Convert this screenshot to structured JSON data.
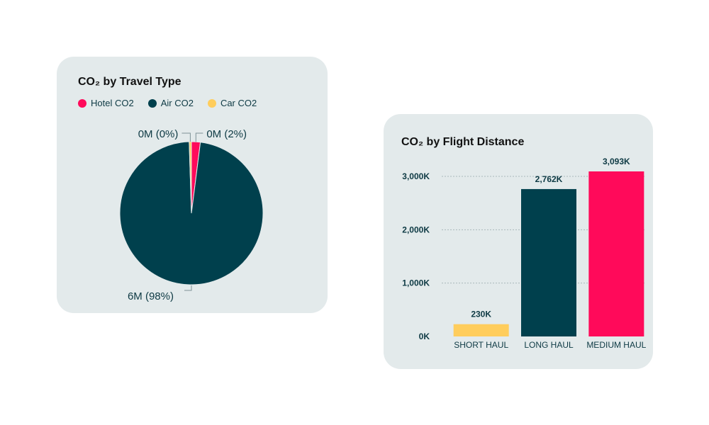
{
  "colors": {
    "hotel": "#ff0a5a",
    "air": "#00404d",
    "car": "#ffcd5c",
    "card_bg": "#e3eaeb",
    "text_dark": "#0e3a44",
    "grid": "#a9b8bb"
  },
  "chart_data": [
    {
      "type": "pie",
      "title": "CO₂ by Travel Type",
      "legend_position": "top-left",
      "slices": [
        {
          "name": "Hotel CO2",
          "value": 0.02,
          "color": "#ff0a5a",
          "label": "0M (2%)"
        },
        {
          "name": "Air CO2",
          "value": 0.975,
          "color": "#00404d",
          "label": "6M (98%)"
        },
        {
          "name": "Car CO2",
          "value": 0.005,
          "color": "#ffcd5c",
          "label": "0M (0%)"
        }
      ]
    },
    {
      "type": "bar",
      "title": "CO₂ by Flight Distance",
      "categories": [
        "SHORT HAUL",
        "LONG HAUL",
        "MEDIUM HAUL"
      ],
      "values": [
        230,
        2762,
        3093
      ],
      "value_labels": [
        "230K",
        "2,762K",
        "3,093K"
      ],
      "colors": [
        "#ffcd5c",
        "#00404d",
        "#ff0a5a"
      ],
      "ylim": [
        0,
        3200
      ],
      "yticks": [
        0,
        1000,
        2000,
        3000
      ],
      "ytick_labels": [
        "0K",
        "1,000K",
        "2,000K",
        "3,000K"
      ],
      "grid": true
    }
  ]
}
